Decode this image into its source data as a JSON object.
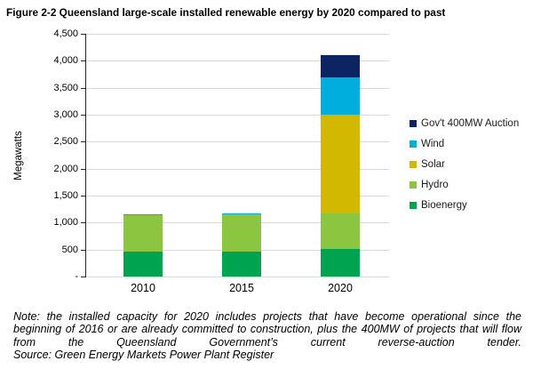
{
  "figure": {
    "title": "Figure 2-2 Queensland large-scale installed renewable energy by 2020 compared to past",
    "note": "Note: the installed capacity for 2020 includes projects that have become operational since the beginning of 2016 or are already committed to construction, plus the 400MW of projects that will flow from the Queensland Government’s current reverse-auction tender.",
    "source": "Source: Green Energy Markets Power Plant Register"
  },
  "chart_data": {
    "type": "bar",
    "stacked": true,
    "title": "Figure 2-2 Queensland large-scale installed renewable energy by 2020 compared to past",
    "xlabel": "",
    "ylabel": "Megawatts",
    "categories": [
      "2010",
      "2015",
      "2020"
    ],
    "series": [
      {
        "name": "Bioenergy",
        "color": "#00a34f",
        "values": [
          460,
          460,
          510
        ]
      },
      {
        "name": "Hydro",
        "color": "#8cc540",
        "values": [
          680,
          700,
          660
        ]
      },
      {
        "name": "Solar",
        "color": "#d3b800",
        "values": [
          0,
          0,
          1830
        ]
      },
      {
        "name": "Wind",
        "color": "#00aede",
        "values": [
          12,
          12,
          700
        ]
      },
      {
        "name": "Gov't 400MW Auction",
        "color": "#0d2463",
        "values": [
          0,
          0,
          400
        ]
      }
    ],
    "ylim": [
      0,
      4500
    ],
    "ytick_interval": 500,
    "ytick_labels": [
      "-",
      "500",
      "1,000",
      "1,500",
      "2,000",
      "2,500",
      "3,000",
      "3,500",
      "4,000",
      "4,500"
    ],
    "grid": true,
    "legend_position": "right",
    "legend_order": [
      "Gov't 400MW Auction",
      "Wind",
      "Solar",
      "Hydro",
      "Bioenergy"
    ],
    "colors": {
      "gridline": "#d9d9d9",
      "axis": "#262626"
    }
  }
}
